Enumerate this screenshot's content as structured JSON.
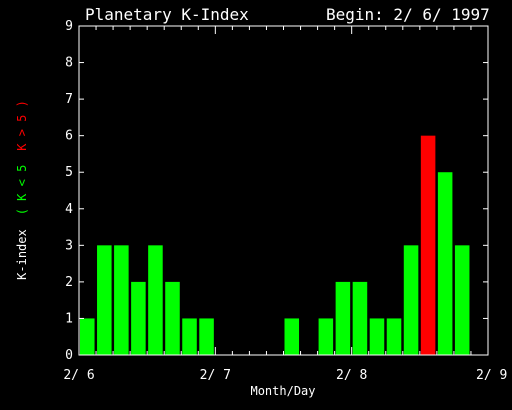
{
  "chart_data": {
    "type": "bar",
    "title": "Planetary K-Index",
    "subtitle": "Begin: 2/ 6/ 1997",
    "xlabel": "Month/Day",
    "ylabel_parts": [
      {
        "text": "K-index",
        "color": "#ffffff"
      },
      {
        "text": "( K < 5",
        "color": "#00ff00"
      },
      {
        "text": "K > 5 )",
        "color": "#ff0000"
      }
    ],
    "ylim": [
      0,
      9
    ],
    "yticks": [
      "0",
      "1",
      "2",
      "3",
      "4",
      "5",
      "6",
      "7",
      "8",
      "9"
    ],
    "x_range": [
      0,
      24
    ],
    "x_tick_labels": [
      {
        "x": 0,
        "label": "2/ 6"
      },
      {
        "x": 8,
        "label": "2/ 7"
      },
      {
        "x": 16,
        "label": "2/ 8"
      },
      {
        "x": 24,
        "label": "2/ 9"
      }
    ],
    "threshold": 5,
    "colors": {
      "low": "#00ff00",
      "high": "#ff0000",
      "axes": "#ffffff",
      "background": "#000000"
    },
    "values": [
      1,
      3,
      3,
      2,
      3,
      2,
      1,
      1,
      0,
      0,
      0,
      0,
      1,
      0,
      1,
      2,
      2,
      1,
      1,
      3,
      6,
      5,
      3,
      0
    ]
  }
}
